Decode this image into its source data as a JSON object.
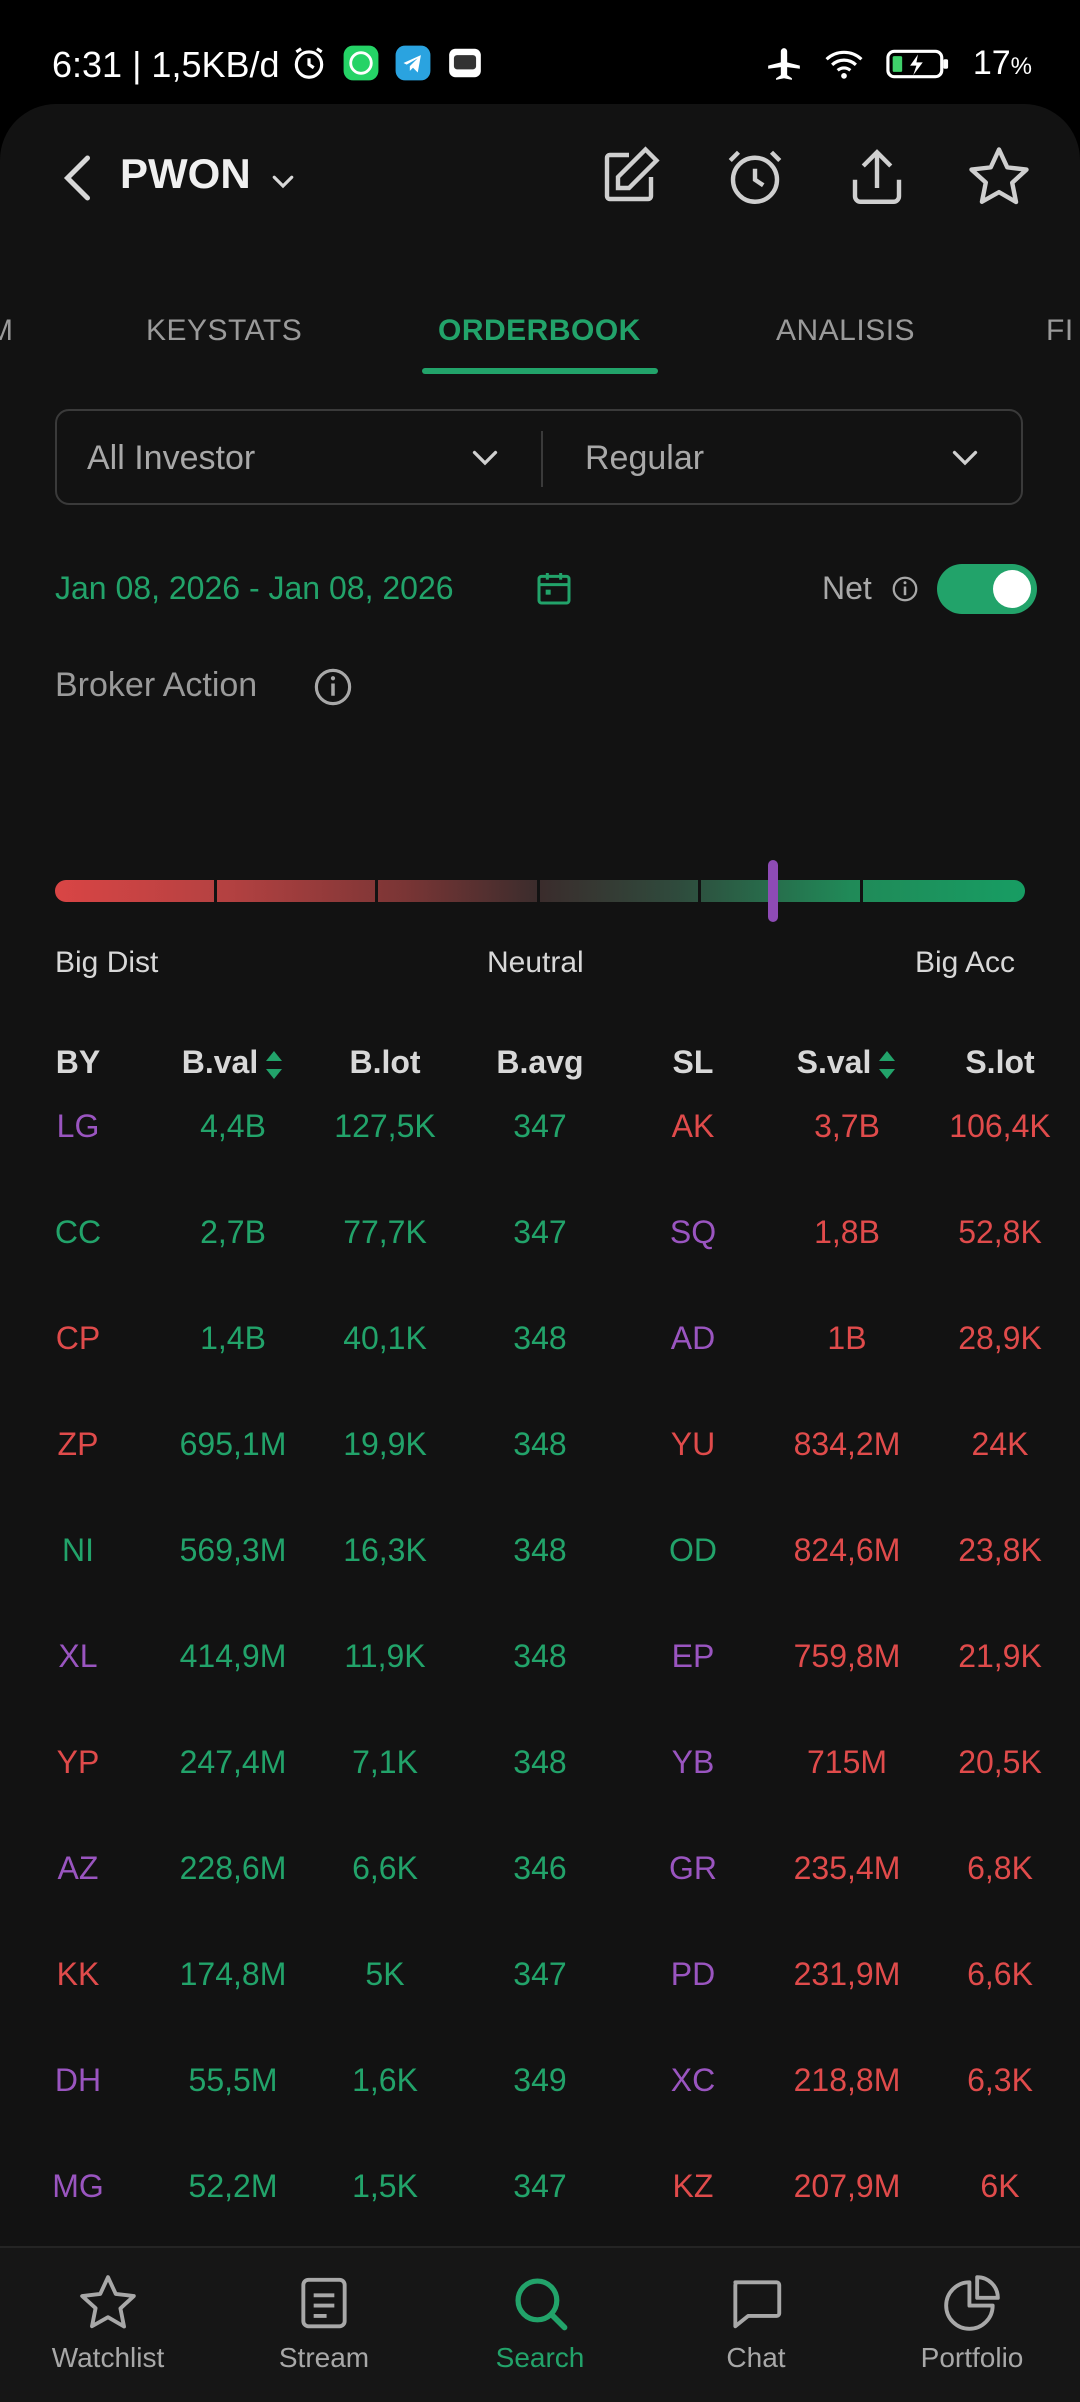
{
  "status_bar": {
    "time": "6:31 | 1,5KB/d",
    "battery_pct": "17",
    "battery_unit": "%"
  },
  "header": {
    "ticker": "PWON"
  },
  "tabs": [
    {
      "label": "M",
      "active": false
    },
    {
      "label": "KEYSTATS",
      "active": false
    },
    {
      "label": "ORDERBOOK",
      "active": true
    },
    {
      "label": "ANALISIS",
      "active": false
    },
    {
      "label": "FI",
      "active": false
    }
  ],
  "filters": {
    "investor": "All Investor",
    "market": "Regular"
  },
  "date_range": "Jan 08, 2026 - Jan 08, 2026",
  "net_label": "Net",
  "net_enabled": true,
  "broker_action": {
    "title": "Broker Action",
    "labels": [
      "Big Dist",
      "Neutral",
      "Big Acc"
    ],
    "level_fraction": 0.74
  },
  "table": {
    "headers": [
      "BY",
      "B.val",
      "B.lot",
      "B.avg",
      "SL",
      "S.val",
      "S.lot"
    ],
    "rows": [
      {
        "by": "LG",
        "by_color": "purple",
        "bval": "4,4B",
        "blot": "127,5K",
        "bavg": "347",
        "sl": "AK",
        "sl_color": "red",
        "sval": "3,7B",
        "slot": "106,4K"
      },
      {
        "by": "CC",
        "by_color": "green",
        "bval": "2,7B",
        "blot": "77,7K",
        "bavg": "347",
        "sl": "SQ",
        "sl_color": "purple",
        "sval": "1,8B",
        "slot": "52,8K"
      },
      {
        "by": "CP",
        "by_color": "red",
        "bval": "1,4B",
        "blot": "40,1K",
        "bavg": "348",
        "sl": "AD",
        "sl_color": "purple",
        "sval": "1B",
        "slot": "28,9K"
      },
      {
        "by": "ZP",
        "by_color": "red",
        "bval": "695,1M",
        "blot": "19,9K",
        "bavg": "348",
        "sl": "YU",
        "sl_color": "red",
        "sval": "834,2M",
        "slot": "24K"
      },
      {
        "by": "NI",
        "by_color": "green",
        "bval": "569,3M",
        "blot": "16,3K",
        "bavg": "348",
        "sl": "OD",
        "sl_color": "green",
        "sval": "824,6M",
        "slot": "23,8K"
      },
      {
        "by": "XL",
        "by_color": "purple",
        "bval": "414,9M",
        "blot": "11,9K",
        "bavg": "348",
        "sl": "EP",
        "sl_color": "purple",
        "sval": "759,8M",
        "slot": "21,9K"
      },
      {
        "by": "YP",
        "by_color": "red",
        "bval": "247,4M",
        "blot": "7,1K",
        "bavg": "348",
        "sl": "YB",
        "sl_color": "purple",
        "sval": "715M",
        "slot": "20,5K"
      },
      {
        "by": "AZ",
        "by_color": "purple",
        "bval": "228,6M",
        "blot": "6,6K",
        "bavg": "346",
        "sl": "GR",
        "sl_color": "purple",
        "sval": "235,4M",
        "slot": "6,8K"
      },
      {
        "by": "KK",
        "by_color": "red",
        "bval": "174,8M",
        "blot": "5K",
        "bavg": "347",
        "sl": "PD",
        "sl_color": "purple",
        "sval": "231,9M",
        "slot": "6,6K"
      },
      {
        "by": "DH",
        "by_color": "purple",
        "bval": "55,5M",
        "blot": "1,6K",
        "bavg": "349",
        "sl": "XC",
        "sl_color": "purple",
        "sval": "218,8M",
        "slot": "6,3K"
      },
      {
        "by": "MG",
        "by_color": "purple",
        "bval": "52,2M",
        "blot": "1,5K",
        "bavg": "347",
        "sl": "KZ",
        "sl_color": "red",
        "sval": "207,9M",
        "slot": "6K"
      }
    ]
  },
  "bottom_nav": [
    {
      "label": "Watchlist",
      "icon": "star-icon",
      "active": false
    },
    {
      "label": "Stream",
      "icon": "stream-icon",
      "active": false
    },
    {
      "label": "Search",
      "icon": "search-icon",
      "active": true
    },
    {
      "label": "Chat",
      "icon": "chat-icon",
      "active": false
    },
    {
      "label": "Portfolio",
      "icon": "pie-chart-icon",
      "active": false
    }
  ],
  "colors": {
    "accent": "#22a36a",
    "sell": "#e04b4b",
    "broker_purple": "#9a55c0",
    "background": "#121212"
  }
}
